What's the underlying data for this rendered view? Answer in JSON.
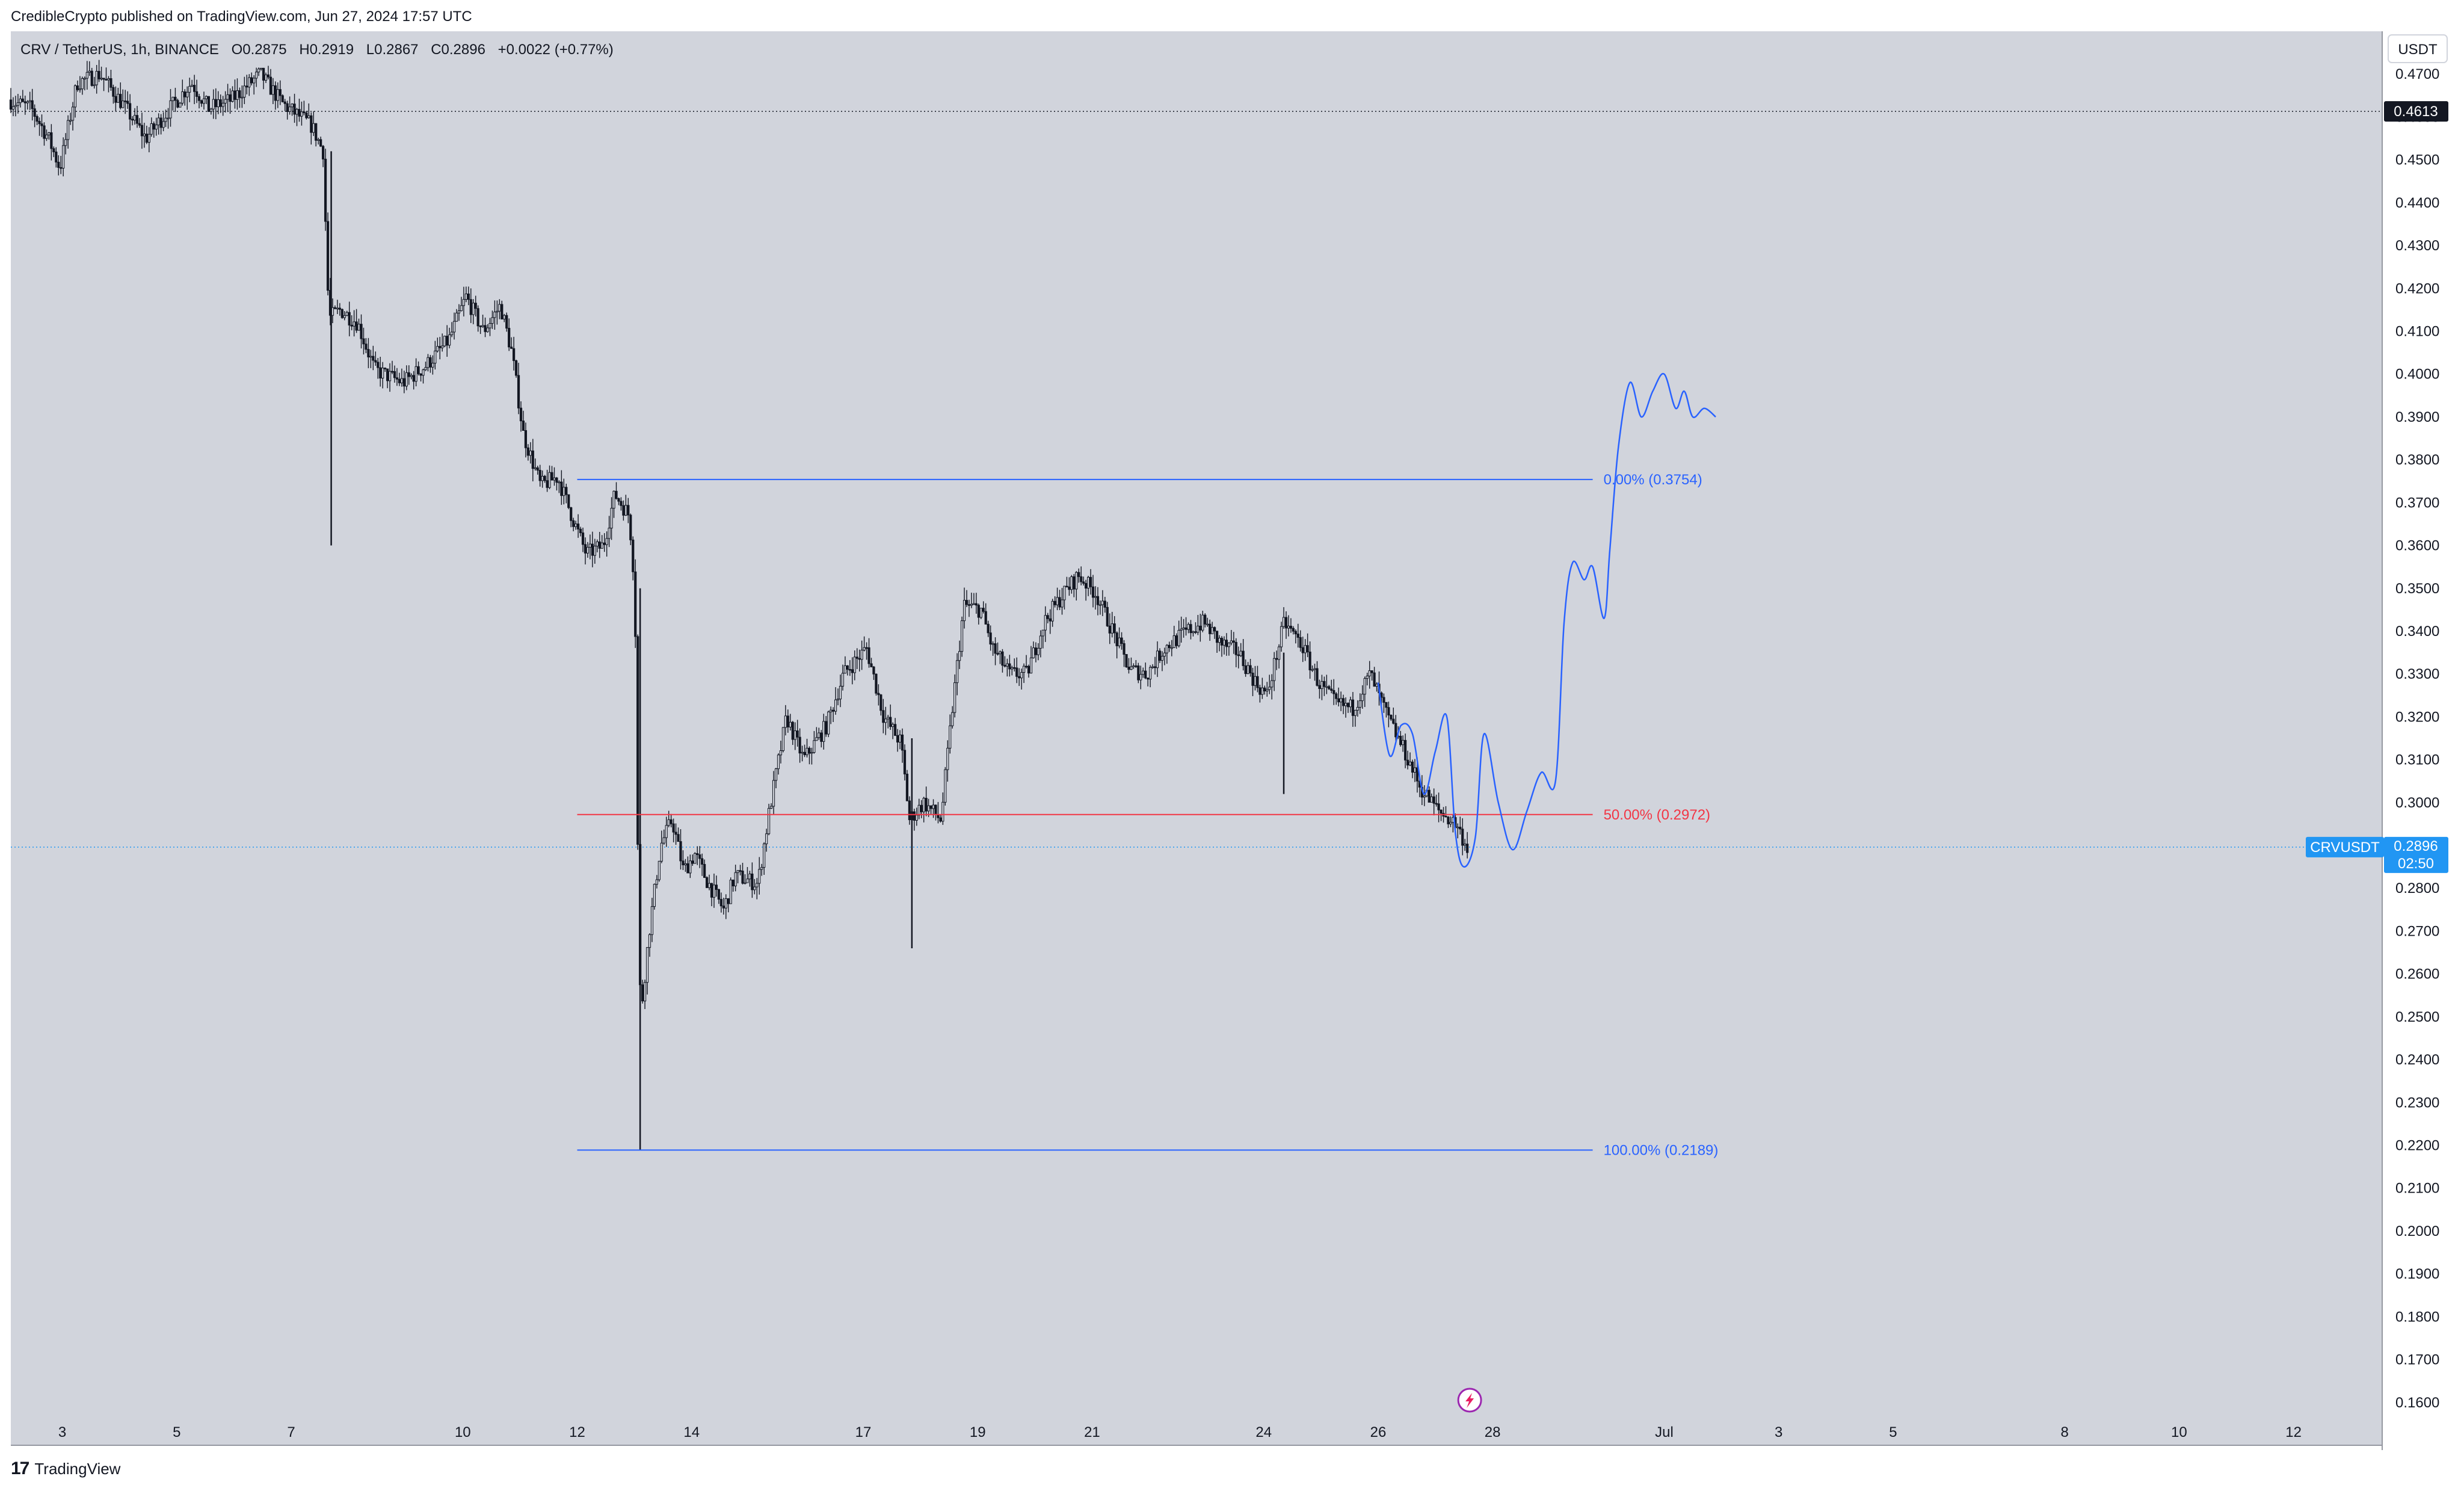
{
  "header": {
    "publisher_line": "CredibleCrypto published on TradingView.com, Jun 27, 2024 17:57 UTC"
  },
  "legend": {
    "symbol": "CRV / TetherUS, 1h, BINANCE",
    "o_label": "O",
    "o_value": "0.2875",
    "h_label": "H",
    "h_value": "0.2919",
    "l_label": "L",
    "l_value": "0.2867",
    "c_label": "C",
    "c_value": "0.2896",
    "change": "+0.0022 (+0.77%)"
  },
  "currency_button": "USDT",
  "price_tag": {
    "symbol": "CRVUSDT",
    "price": "0.2896",
    "countdown": "02:50"
  },
  "marker_price": "0.4613",
  "footer": {
    "logo_mark": "17",
    "logo_text": "TradingView"
  },
  "colors": {
    "plot_bg": "#d1d4dc",
    "candle": "#131722",
    "fib_blue": "#2962ff",
    "fib_red": "#f23645",
    "projection": "#2962ff",
    "last_price": "#2196f3",
    "event_icon": "#9c27b0"
  },
  "chart_data": {
    "type": "candlestick",
    "symbol": "CRV / TetherUS",
    "interval": "1h",
    "exchange": "BINANCE",
    "y_axis": {
      "ylim": [
        0.15,
        0.48
      ],
      "ticks": [
        "0.4700",
        "0.4600",
        "0.4500",
        "0.4400",
        "0.4300",
        "0.4200",
        "0.4100",
        "0.4000",
        "0.3900",
        "0.3800",
        "0.3700",
        "0.3600",
        "0.3500",
        "0.3400",
        "0.3300",
        "0.3200",
        "0.3100",
        "0.3000",
        "0.2900",
        "0.2800",
        "0.2700",
        "0.2600",
        "0.2500",
        "0.2400",
        "0.2300",
        "0.2200",
        "0.2100",
        "0.2000",
        "0.1900",
        "0.1800",
        "0.1700",
        "0.1600"
      ],
      "tick_values": [
        0.47,
        0.46,
        0.45,
        0.44,
        0.43,
        0.42,
        0.41,
        0.4,
        0.39,
        0.38,
        0.37,
        0.36,
        0.35,
        0.34,
        0.33,
        0.32,
        0.31,
        0.3,
        0.29,
        0.28,
        0.27,
        0.26,
        0.25,
        0.24,
        0.23,
        0.22,
        0.21,
        0.2,
        0.19,
        0.18,
        0.17,
        0.16
      ]
    },
    "x_axis": {
      "ticks": [
        {
          "label": "3",
          "day": 3
        },
        {
          "label": "5",
          "day": 5
        },
        {
          "label": "7",
          "day": 7
        },
        {
          "label": "10",
          "day": 10
        },
        {
          "label": "12",
          "day": 12
        },
        {
          "label": "14",
          "day": 14
        },
        {
          "label": "17",
          "day": 17
        },
        {
          "label": "19",
          "day": 19
        },
        {
          "label": "21",
          "day": 21
        },
        {
          "label": "24",
          "day": 24
        },
        {
          "label": "26",
          "day": 26
        },
        {
          "label": "28",
          "day": 28
        },
        {
          "label": "Jul",
          "day": 31
        },
        {
          "label": "3",
          "day": 33
        },
        {
          "label": "5",
          "day": 35
        },
        {
          "label": "8",
          "day": 38
        },
        {
          "label": "10",
          "day": 40
        },
        {
          "label": "12",
          "day": 42
        }
      ],
      "day_range": [
        2.1,
        43.55
      ]
    },
    "price_path": [
      [
        2.1,
        0.464
      ],
      [
        2.5,
        0.462
      ],
      [
        2.8,
        0.455
      ],
      [
        3.0,
        0.448
      ],
      [
        3.3,
        0.468
      ],
      [
        3.7,
        0.47
      ],
      [
        4.1,
        0.463
      ],
      [
        4.5,
        0.455
      ],
      [
        4.8,
        0.46
      ],
      [
        5.3,
        0.468
      ],
      [
        5.6,
        0.462
      ],
      [
        6.0,
        0.464
      ],
      [
        6.5,
        0.47
      ],
      [
        6.9,
        0.463
      ],
      [
        7.4,
        0.458
      ],
      [
        7.6,
        0.452
      ],
      [
        7.7,
        0.413
      ],
      [
        7.9,
        0.415
      ],
      [
        8.2,
        0.412
      ],
      [
        8.5,
        0.401
      ],
      [
        9.0,
        0.398
      ],
      [
        9.4,
        0.402
      ],
      [
        9.8,
        0.408
      ],
      [
        10.1,
        0.418
      ],
      [
        10.4,
        0.41
      ],
      [
        10.7,
        0.416
      ],
      [
        10.9,
        0.405
      ],
      [
        11.1,
        0.386
      ],
      [
        11.4,
        0.374
      ],
      [
        11.7,
        0.376
      ],
      [
        12.0,
        0.365
      ],
      [
        12.2,
        0.358
      ],
      [
        12.5,
        0.36
      ],
      [
        12.7,
        0.372
      ],
      [
        12.95,
        0.367
      ],
      [
        13.05,
        0.35
      ],
      [
        13.1,
        0.29
      ],
      [
        13.15,
        0.25
      ],
      [
        13.3,
        0.27
      ],
      [
        13.5,
        0.29
      ],
      [
        13.7,
        0.296
      ],
      [
        13.9,
        0.284
      ],
      [
        14.1,
        0.288
      ],
      [
        14.3,
        0.282
      ],
      [
        14.6,
        0.275
      ],
      [
        14.8,
        0.283
      ],
      [
        15.2,
        0.281
      ],
      [
        15.4,
        0.298
      ],
      [
        15.7,
        0.32
      ],
      [
        16.0,
        0.31
      ],
      [
        16.4,
        0.318
      ],
      [
        16.7,
        0.33
      ],
      [
        17.1,
        0.336
      ],
      [
        17.4,
        0.32
      ],
      [
        17.7,
        0.314
      ],
      [
        17.85,
        0.296
      ],
      [
        18.1,
        0.3
      ],
      [
        18.4,
        0.296
      ],
      [
        18.6,
        0.322
      ],
      [
        18.8,
        0.346
      ],
      [
        19.1,
        0.345
      ],
      [
        19.3,
        0.336
      ],
      [
        19.6,
        0.33
      ],
      [
        19.9,
        0.33
      ],
      [
        20.2,
        0.342
      ],
      [
        20.5,
        0.348
      ],
      [
        20.8,
        0.353
      ],
      [
        21.1,
        0.349
      ],
      [
        21.4,
        0.34
      ],
      [
        21.7,
        0.331
      ],
      [
        22.0,
        0.33
      ],
      [
        22.3,
        0.336
      ],
      [
        22.7,
        0.34
      ],
      [
        23.0,
        0.342
      ],
      [
        23.3,
        0.337
      ],
      [
        23.6,
        0.335
      ],
      [
        23.9,
        0.328
      ],
      [
        24.1,
        0.325
      ],
      [
        24.4,
        0.342
      ],
      [
        24.7,
        0.337
      ],
      [
        25.0,
        0.328
      ],
      [
        25.3,
        0.323
      ],
      [
        25.6,
        0.322
      ],
      [
        25.9,
        0.33
      ],
      [
        26.2,
        0.32
      ],
      [
        26.5,
        0.312
      ],
      [
        26.8,
        0.303
      ],
      [
        27.1,
        0.298
      ],
      [
        27.4,
        0.295
      ],
      [
        27.6,
        0.2896
      ]
    ],
    "wicks": [
      {
        "day": 7.7,
        "low": 0.36,
        "high": 0.452
      },
      {
        "day": 13.1,
        "low": 0.2189,
        "high": 0.35
      },
      {
        "day": 17.85,
        "low": 0.266,
        "high": 0.315
      },
      {
        "day": 24.35,
        "low": 0.302,
        "high": 0.335
      }
    ],
    "fibonacci": [
      {
        "label": "0.00% (0.3754)",
        "value": 0.3754,
        "color": "#2962ff"
      },
      {
        "label": "50.00% (0.2972)",
        "value": 0.2972,
        "color": "#f23645"
      },
      {
        "label": "100.00% (0.2189)",
        "value": 0.2189,
        "color": "#2962ff"
      }
    ],
    "fib_range_days": [
      12.0,
      29.75
    ],
    "projection_path": [
      [
        26.0,
        0.328
      ],
      [
        26.2,
        0.311
      ],
      [
        26.4,
        0.318
      ],
      [
        26.6,
        0.316
      ],
      [
        26.8,
        0.302
      ],
      [
        27.0,
        0.312
      ],
      [
        27.2,
        0.32
      ],
      [
        27.35,
        0.293
      ],
      [
        27.5,
        0.285
      ],
      [
        27.7,
        0.292
      ],
      [
        27.85,
        0.316
      ],
      [
        28.1,
        0.3
      ],
      [
        28.35,
        0.289
      ],
      [
        28.6,
        0.298
      ],
      [
        28.85,
        0.307
      ],
      [
        29.1,
        0.305
      ],
      [
        29.25,
        0.342
      ],
      [
        29.4,
        0.356
      ],
      [
        29.6,
        0.352
      ],
      [
        29.75,
        0.355
      ],
      [
        29.95,
        0.343
      ],
      [
        30.05,
        0.359
      ],
      [
        30.2,
        0.383
      ],
      [
        30.4,
        0.398
      ],
      [
        30.6,
        0.39
      ],
      [
        30.8,
        0.396
      ],
      [
        31.0,
        0.4
      ],
      [
        31.2,
        0.392
      ],
      [
        31.35,
        0.396
      ],
      [
        31.5,
        0.39
      ],
      [
        31.7,
        0.392
      ],
      [
        31.9,
        0.39
      ]
    ],
    "last_price": 0.2896,
    "high_marker": 0.4613
  }
}
